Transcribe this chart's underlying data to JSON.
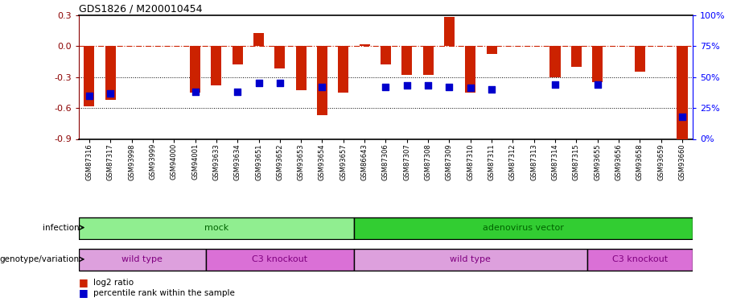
{
  "title": "GDS1826 / M200010454",
  "samples": [
    "GSM87316",
    "GSM87317",
    "GSM93998",
    "GSM93999",
    "GSM94000",
    "GSM94001",
    "GSM93633",
    "GSM93634",
    "GSM93651",
    "GSM93652",
    "GSM93653",
    "GSM93654",
    "GSM93657",
    "GSM86643",
    "GSM87306",
    "GSM87307",
    "GSM87308",
    "GSM87309",
    "GSM87310",
    "GSM87311",
    "GSM87312",
    "GSM87313",
    "GSM87314",
    "GSM87315",
    "GSM93655",
    "GSM93656",
    "GSM93658",
    "GSM93659",
    "GSM93660"
  ],
  "log2_ratio": [
    -0.58,
    -0.52,
    0.0,
    0.0,
    0.0,
    -0.45,
    -0.38,
    -0.18,
    0.13,
    -0.22,
    -0.43,
    -0.67,
    -0.45,
    0.02,
    -0.18,
    -0.28,
    -0.28,
    0.28,
    -0.45,
    -0.08,
    0.0,
    0.0,
    -0.3,
    -0.2,
    -0.35,
    0.0,
    -0.25,
    0.0,
    -0.9
  ],
  "percentile_rank": [
    35,
    37,
    null,
    null,
    null,
    38,
    null,
    38,
    45,
    45,
    null,
    42,
    null,
    null,
    42,
    43,
    43,
    42,
    41,
    40,
    null,
    null,
    44,
    null,
    44,
    null,
    null,
    null,
    18
  ],
  "infection_groups": [
    {
      "label": "mock",
      "start": 0,
      "end": 12,
      "color": "#90EE90"
    },
    {
      "label": "adenovirus vector",
      "start": 13,
      "end": 28,
      "color": "#32CD32"
    }
  ],
  "genotype_groups": [
    {
      "label": "wild type",
      "start": 0,
      "end": 5,
      "color": "#DDA0DD"
    },
    {
      "label": "C3 knockout",
      "start": 6,
      "end": 12,
      "color": "#DA70D6"
    },
    {
      "label": "wild type",
      "start": 13,
      "end": 23,
      "color": "#DDA0DD"
    },
    {
      "label": "C3 knockout",
      "start": 24,
      "end": 28,
      "color": "#DA70D6"
    }
  ],
  "ylim": [
    -0.9,
    0.3
  ],
  "yticks_left": [
    -0.9,
    -0.6,
    -0.3,
    0.0,
    0.3
  ],
  "yticks_right": [
    0,
    25,
    50,
    75,
    100
  ],
  "bar_color": "#CC2200",
  "dot_color": "#0000CC",
  "hline_color": "#CC2200",
  "dot_size": 35,
  "bar_width": 0.5
}
